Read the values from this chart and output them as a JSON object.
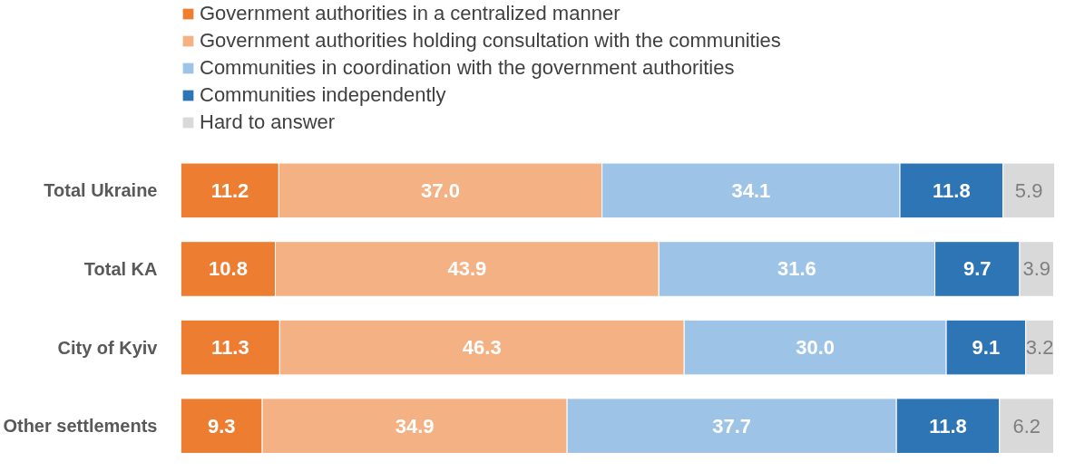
{
  "chart_data": {
    "type": "bar",
    "orientation": "horizontal",
    "stacked": true,
    "grid": false,
    "legend": "top",
    "tick_labels": "y",
    "categories": [
      "Total Ukraine",
      "Total KA",
      "City of Kyiv",
      "Other settlements"
    ],
    "series": [
      {
        "name": "Government authorities in a centralized manner",
        "color": "#ed7d31",
        "values": [
          11.2,
          10.8,
          11.3,
          9.3
        ],
        "value_labels": [
          "11.2",
          "10.8",
          "11.3",
          "9.3"
        ]
      },
      {
        "name": "Government authorities holding consultation with the communities",
        "color": "#f4b183",
        "values": [
          37.0,
          43.9,
          46.3,
          34.9
        ],
        "value_labels": [
          "37.0",
          "43.9",
          "46.3",
          "34.9"
        ]
      },
      {
        "name": "Communities in coordination with the government authorities",
        "color": "#9dc3e6",
        "values": [
          34.1,
          31.6,
          30.0,
          37.7
        ],
        "value_labels": [
          "34.1",
          "31.6",
          "30.0",
          "37.7"
        ]
      },
      {
        "name": "Communities independently",
        "color": "#2e75b6",
        "values": [
          11.8,
          9.7,
          9.1,
          11.8
        ],
        "value_labels": [
          "11.8",
          "9.7",
          "9.1",
          "11.8"
        ]
      },
      {
        "name": "Hard to answer",
        "color": "#d9d9d9",
        "values": [
          5.9,
          3.9,
          3.2,
          6.2
        ],
        "value_labels": [
          "5.9",
          "3.9",
          "3.2",
          "6.2"
        ]
      }
    ]
  }
}
